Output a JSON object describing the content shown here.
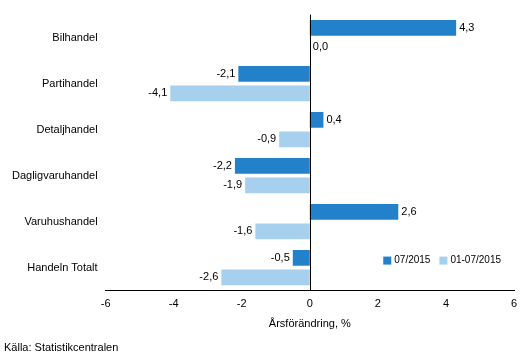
{
  "chart_data": {
    "type": "bar",
    "orientation": "horizontal",
    "categories": [
      "Bilhandel",
      "Partihandel",
      "Detaljhandel",
      "Dagligvaruhandel",
      "Varuhushandel",
      "Handeln Totalt"
    ],
    "series": [
      {
        "name": "07/2015",
        "color": "#2381c9",
        "values": [
          4.3,
          -2.1,
          0.4,
          -2.2,
          2.6,
          -0.5
        ],
        "value_labels": [
          "4,3",
          "-2,1",
          "0,4",
          "-2,2",
          "2,6",
          "-0,5"
        ]
      },
      {
        "name": "01-07/2015",
        "color": "#a7cfee",
        "values": [
          0.0,
          -4.1,
          -0.9,
          -1.9,
          -1.6,
          -2.6
        ],
        "value_labels": [
          "0,0",
          "-4,1",
          "-0,9",
          "-1,9",
          "-1,6",
          "-2,6"
        ]
      }
    ],
    "x_label": "Årsförändring, %",
    "xlim": [
      -6,
      6
    ],
    "xticks": [
      -6,
      -4,
      -2,
      0,
      2,
      4,
      6
    ],
    "grid": false,
    "data_labels": true,
    "legend": "lower right",
    "source": "Källa: Statistikcentralen"
  }
}
